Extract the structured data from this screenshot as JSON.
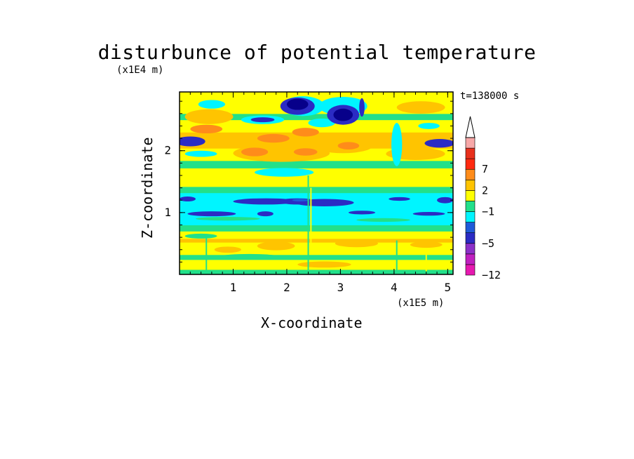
{
  "title": "disturbunce of potential temperature",
  "time_label": "t=138000 s",
  "colors": {
    "background": "#ffffff",
    "frame": "#000000"
  },
  "chart_data": {
    "type": "heatmap",
    "title": "disturbunce of potential temperature",
    "xlabel": "X-coordinate",
    "ylabel": "Z-coordinate",
    "x_multiplier": "(x1E5 m)",
    "z_multiplier": "(x1E4 m)",
    "x_ticks": [
      {
        "value": 1,
        "label": "1"
      },
      {
        "value": 2,
        "label": "2"
      },
      {
        "value": 3,
        "label": "3"
      },
      {
        "value": 4,
        "label": "4"
      },
      {
        "value": 5,
        "label": "5"
      }
    ],
    "z_ticks": [
      {
        "value": 1,
        "label": "1"
      },
      {
        "value": 2,
        "label": "2"
      }
    ],
    "xlim": [
      0,
      5.1
    ],
    "zlim": [
      0,
      2.95
    ],
    "annotation": "t=138000 s",
    "colorbar": {
      "label_levels": [
        {
          "value": 7,
          "label": "7"
        },
        {
          "value": 2,
          "label": "2"
        },
        {
          "value": -1,
          "label": "−1"
        },
        {
          "value": -5,
          "label": "−5"
        },
        {
          "value": -12,
          "label": "−12"
        }
      ],
      "colors_bottom_to_top": [
        "#e619b0",
        "#c020c0",
        "#8c30c8",
        "#2b2bc4",
        "#1f5bd8",
        "#00f5ff",
        "#22e08a",
        "#ffff00",
        "#ffc400",
        "#ff8c1a",
        "#ff2a10",
        "#e8301c",
        "#f7a8a8"
      ],
      "extend": "max",
      "extend_color": "#ffffff"
    },
    "band_colors": {
      "neg12": "#e619b0",
      "neg8": "#c020c0",
      "neg6": "#8c30c8",
      "deep": "#07008a",
      "neg5": "#2b2bc4",
      "neg3": "#1f5bd8",
      "neg1": "#00f5ff",
      "zero": "#22e08a",
      "pos1": "#ffff00",
      "pos2": "#ffc400",
      "pos4": "#ff8c1a",
      "pos7": "#ff2a10"
    },
    "field_rows": [
      {
        "z0": 0.0,
        "z1": 0.08,
        "band": "zero"
      },
      {
        "z0": 0.08,
        "z1": 0.24,
        "band": "pos1"
      },
      {
        "z0": 0.24,
        "z1": 0.32,
        "band": "zero"
      },
      {
        "z0": 0.32,
        "z1": 0.52,
        "band": "pos1"
      },
      {
        "z0": 0.52,
        "z1": 0.58,
        "band": "pos2"
      },
      {
        "z0": 0.58,
        "z1": 0.7,
        "band": "pos1"
      },
      {
        "z0": 0.7,
        "z1": 0.8,
        "band": "zero"
      },
      {
        "z0": 0.8,
        "z1": 1.32,
        "band": "neg1"
      },
      {
        "z0": 1.32,
        "z1": 1.42,
        "band": "zero"
      },
      {
        "z0": 1.42,
        "z1": 1.72,
        "band": "pos1"
      },
      {
        "z0": 1.72,
        "z1": 1.84,
        "band": "zero"
      },
      {
        "z0": 1.84,
        "z1": 2.04,
        "band": "pos1"
      },
      {
        "z0": 2.04,
        "z1": 2.3,
        "band": "pos2"
      },
      {
        "z0": 2.3,
        "z1": 2.5,
        "band": "pos1"
      },
      {
        "z0": 2.5,
        "z1": 2.6,
        "band": "zero"
      },
      {
        "z0": 2.6,
        "z1": 2.95,
        "band": "pos1"
      }
    ],
    "field_blobs": [
      {
        "x": 1.9,
        "z": 1.96,
        "rx": 0.9,
        "rz": 0.14,
        "band": "pos2"
      },
      {
        "x": 3.05,
        "z": 2.08,
        "rx": 0.55,
        "rz": 0.12,
        "band": "pos2"
      },
      {
        "x": 1.75,
        "z": 2.2,
        "rx": 0.3,
        "rz": 0.07,
        "band": "pos4"
      },
      {
        "x": 2.35,
        "z": 2.3,
        "rx": 0.25,
        "rz": 0.07,
        "band": "pos4"
      },
      {
        "x": 1.4,
        "z": 1.98,
        "rx": 0.25,
        "rz": 0.07,
        "band": "pos4"
      },
      {
        "x": 2.35,
        "z": 1.98,
        "rx": 0.22,
        "rz": 0.06,
        "band": "pos4"
      },
      {
        "x": 3.15,
        "z": 2.08,
        "rx": 0.2,
        "rz": 0.06,
        "band": "pos4"
      },
      {
        "x": 4.4,
        "z": 1.95,
        "rx": 0.55,
        "rz": 0.1,
        "band": "pos2"
      },
      {
        "x": 4.5,
        "z": 2.7,
        "rx": 0.45,
        "rz": 0.1,
        "band": "pos2"
      },
      {
        "x": 0.55,
        "z": 2.55,
        "rx": 0.45,
        "rz": 0.12,
        "band": "pos2"
      },
      {
        "x": 0.5,
        "z": 2.35,
        "rx": 0.3,
        "rz": 0.07,
        "band": "pos4"
      },
      {
        "x": 3.05,
        "z": 2.72,
        "rx": 0.45,
        "rz": 0.15,
        "band": "neg1"
      },
      {
        "x": 2.65,
        "z": 2.45,
        "rx": 0.25,
        "rz": 0.07,
        "band": "neg1"
      },
      {
        "x": 1.95,
        "z": 1.65,
        "rx": 0.55,
        "rz": 0.07,
        "band": "neg1"
      },
      {
        "x": 2.3,
        "z": 2.72,
        "rx": 0.4,
        "rz": 0.16,
        "band": "neg1"
      },
      {
        "x": 2.2,
        "z": 2.72,
        "rx": 0.32,
        "rz": 0.14,
        "band": "neg5"
      },
      {
        "x": 2.2,
        "z": 2.75,
        "rx": 0.2,
        "rz": 0.09,
        "band": "deep"
      },
      {
        "x": 3.05,
        "z": 2.58,
        "rx": 0.3,
        "rz": 0.16,
        "band": "neg5"
      },
      {
        "x": 3.05,
        "z": 2.58,
        "rx": 0.18,
        "rz": 0.1,
        "band": "deep"
      },
      {
        "x": 1.55,
        "z": 2.5,
        "rx": 0.4,
        "rz": 0.07,
        "band": "neg1"
      },
      {
        "x": 1.55,
        "z": 2.5,
        "rx": 0.22,
        "rz": 0.04,
        "band": "neg5"
      },
      {
        "x": 0.6,
        "z": 2.75,
        "rx": 0.25,
        "rz": 0.07,
        "band": "neg1"
      },
      {
        "x": 0.2,
        "z": 2.15,
        "rx": 0.28,
        "rz": 0.08,
        "band": "neg5"
      },
      {
        "x": 4.85,
        "z": 2.12,
        "rx": 0.28,
        "rz": 0.07,
        "band": "neg5"
      },
      {
        "x": 4.65,
        "z": 2.4,
        "rx": 0.2,
        "rz": 0.05,
        "band": "neg1"
      },
      {
        "x": 0.4,
        "z": 1.95,
        "rx": 0.3,
        "rz": 0.05,
        "band": "neg1"
      },
      {
        "x": 3.4,
        "z": 2.7,
        "rx": 0.05,
        "rz": 0.15,
        "band": "neg5"
      },
      {
        "x": 4.05,
        "z": 2.1,
        "rx": 0.07,
        "rz": 0.3,
        "band": "neg5"
      },
      {
        "x": 4.05,
        "z": 2.1,
        "rx": 0.1,
        "rz": 0.35,
        "band": "neg1"
      },
      {
        "x": 2.7,
        "z": 1.16,
        "rx": 0.55,
        "rz": 0.06,
        "band": "neg5"
      },
      {
        "x": 1.6,
        "z": 1.18,
        "rx": 0.6,
        "rz": 0.05,
        "band": "neg5"
      },
      {
        "x": 2.2,
        "z": 1.18,
        "rx": 0.35,
        "rz": 0.05,
        "band": "neg5"
      },
      {
        "x": 2.25,
        "z": 1.2,
        "rx": 0.15,
        "rz": 0.02,
        "band": "neg3"
      },
      {
        "x": 1.6,
        "z": 0.98,
        "rx": 0.15,
        "rz": 0.04,
        "band": "neg5"
      },
      {
        "x": 0.6,
        "z": 0.98,
        "rx": 0.45,
        "rz": 0.04,
        "band": "neg5"
      },
      {
        "x": 3.4,
        "z": 1.0,
        "rx": 0.25,
        "rz": 0.03,
        "band": "neg5"
      },
      {
        "x": 4.65,
        "z": 0.98,
        "rx": 0.3,
        "rz": 0.03,
        "band": "neg5"
      },
      {
        "x": 4.95,
        "z": 1.2,
        "rx": 0.15,
        "rz": 0.05,
        "band": "neg5"
      },
      {
        "x": 0.15,
        "z": 1.22,
        "rx": 0.15,
        "rz": 0.04,
        "band": "neg5"
      },
      {
        "x": 4.1,
        "z": 1.22,
        "rx": 0.2,
        "rz": 0.03,
        "band": "neg5"
      },
      {
        "x": 0.9,
        "z": 0.9,
        "rx": 0.6,
        "rz": 0.03,
        "band": "zero"
      },
      {
        "x": 3.8,
        "z": 0.88,
        "rx": 0.5,
        "rz": 0.03,
        "band": "zero"
      },
      {
        "x": 1.8,
        "z": 0.46,
        "rx": 0.35,
        "rz": 0.07,
        "band": "pos2"
      },
      {
        "x": 3.3,
        "z": 0.5,
        "rx": 0.4,
        "rz": 0.06,
        "band": "pos2"
      },
      {
        "x": 0.9,
        "z": 0.4,
        "rx": 0.25,
        "rz": 0.05,
        "band": "pos2"
      },
      {
        "x": 4.6,
        "z": 0.48,
        "rx": 0.3,
        "rz": 0.05,
        "band": "pos2"
      },
      {
        "x": 2.7,
        "z": 0.16,
        "rx": 0.5,
        "rz": 0.05,
        "band": "pos2"
      },
      {
        "x": 1.3,
        "z": 0.3,
        "rx": 0.5,
        "rz": 0.03,
        "band": "zero"
      },
      {
        "x": 3.9,
        "z": 0.28,
        "rx": 0.4,
        "rz": 0.03,
        "band": "zero"
      },
      {
        "x": 0.4,
        "z": 0.62,
        "rx": 0.3,
        "rz": 0.04,
        "band": "zero"
      }
    ],
    "field_streaks": [
      {
        "x": 0.5,
        "z0": 0.0,
        "z1": 0.62,
        "band": "zero"
      },
      {
        "x": 2.4,
        "z0": 0.0,
        "z1": 1.6,
        "band": "zero"
      },
      {
        "x": 2.45,
        "z0": 0.4,
        "z1": 1.4,
        "band": "pos1"
      },
      {
        "x": 4.05,
        "z0": 0.05,
        "z1": 0.55,
        "band": "zero"
      },
      {
        "x": 4.6,
        "z0": 0.05,
        "z1": 0.4,
        "band": "pos1"
      }
    ]
  }
}
